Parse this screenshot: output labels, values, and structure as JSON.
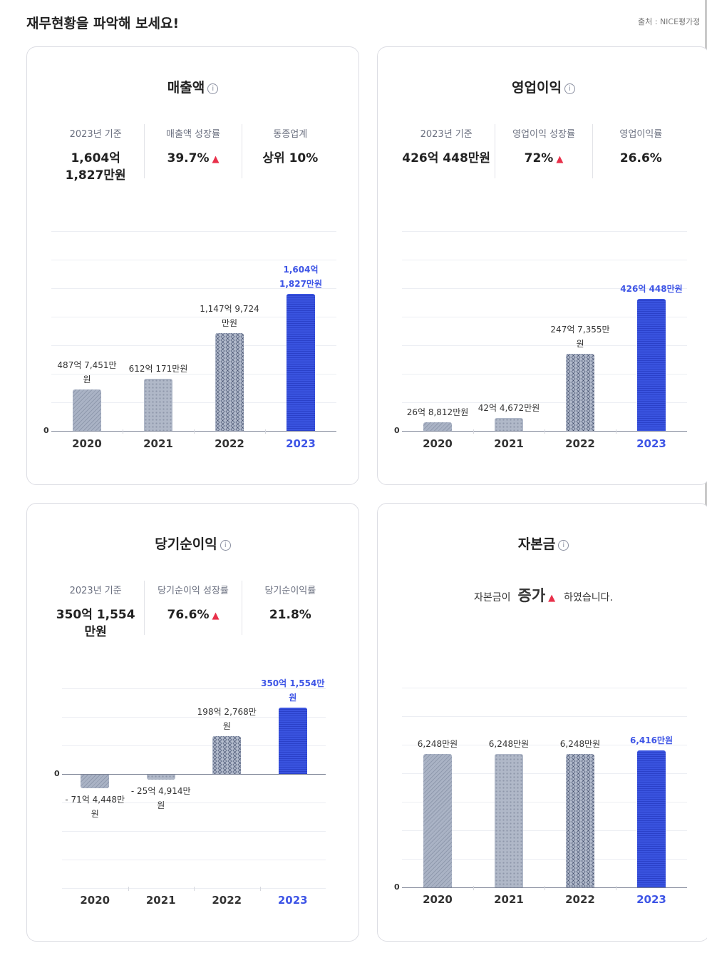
{
  "header": {
    "title": "재무현황을 파악해 보세요!",
    "source": "출처 : NICE평가정"
  },
  "cards": [
    {
      "title": "매출액",
      "stats": [
        {
          "label": "2023년 기준",
          "value": "1,604억 1,827만원"
        },
        {
          "label": "매출액 성장률",
          "value": "39.7%",
          "trend": "up"
        },
        {
          "label": "동종업계",
          "value": "상위 10%"
        }
      ]
    },
    {
      "title": "영업이익",
      "stats": [
        {
          "label": "2023년 기준",
          "value": "426억 448만원"
        },
        {
          "label": "영업이익 성장률",
          "value": "72%",
          "trend": "up"
        },
        {
          "label": "영업이익률",
          "value": "26.6%"
        }
      ]
    },
    {
      "title": "당기순이익",
      "stats": [
        {
          "label": "2023년 기준",
          "value": "350억 1,554만원"
        },
        {
          "label": "당기순이익 성장률",
          "value": "76.6%",
          "trend": "up"
        },
        {
          "label": "당기순이익률",
          "value": "21.8%"
        }
      ]
    },
    {
      "title": "자본금",
      "sentence": {
        "prefix": "자본금이",
        "emphasis": "증가",
        "suffix": "하였습니다.",
        "trend": "up"
      }
    }
  ],
  "colors": {
    "highlight": "#3e55e6",
    "bar_gray": "#b0b8c8",
    "trend_up": "#e8304a"
  },
  "chart_data": [
    {
      "type": "bar",
      "title": "매출액",
      "unit": "억원",
      "zero_label": "0",
      "categories": [
        "2020",
        "2021",
        "2022",
        "2023"
      ],
      "values": [
        487.7451,
        612.0171,
        1147.9724,
        1604.1827
      ],
      "labels": [
        "487억 7,451만원",
        "612억 171만원",
        "1,147억 9,724만원",
        "1,604억 1,827만원"
      ],
      "highlight": "2023"
    },
    {
      "type": "bar",
      "title": "영업이익",
      "unit": "억원",
      "zero_label": "0",
      "categories": [
        "2020",
        "2021",
        "2022",
        "2023"
      ],
      "values": [
        26.8812,
        42.4672,
        247.7355,
        426.0448
      ],
      "labels": [
        "26억 8,812만원",
        "42억 4,672만원",
        "247억 7,355만원",
        "426억 448만원"
      ],
      "highlight": "2023"
    },
    {
      "type": "bar",
      "title": "당기순이익",
      "unit": "억원",
      "zero_label": "0",
      "categories": [
        "2020",
        "2021",
        "2022",
        "2023"
      ],
      "values": [
        -71.4448,
        -25.4914,
        198.2768,
        350.1554
      ],
      "labels": [
        "- 71억 4,448만원",
        "- 25억 4,914만원",
        "198억 2,768만원",
        "350억 1,554만원"
      ],
      "highlight": "2023"
    },
    {
      "type": "bar",
      "title": "자본금",
      "unit": "만원",
      "zero_label": "0",
      "categories": [
        "2020",
        "2021",
        "2022",
        "2023"
      ],
      "values": [
        6248,
        6248,
        6248,
        6416
      ],
      "labels": [
        "6,248만원",
        "6,248만원",
        "6,248만원",
        "6,416만원"
      ],
      "highlight": "2023"
    }
  ]
}
